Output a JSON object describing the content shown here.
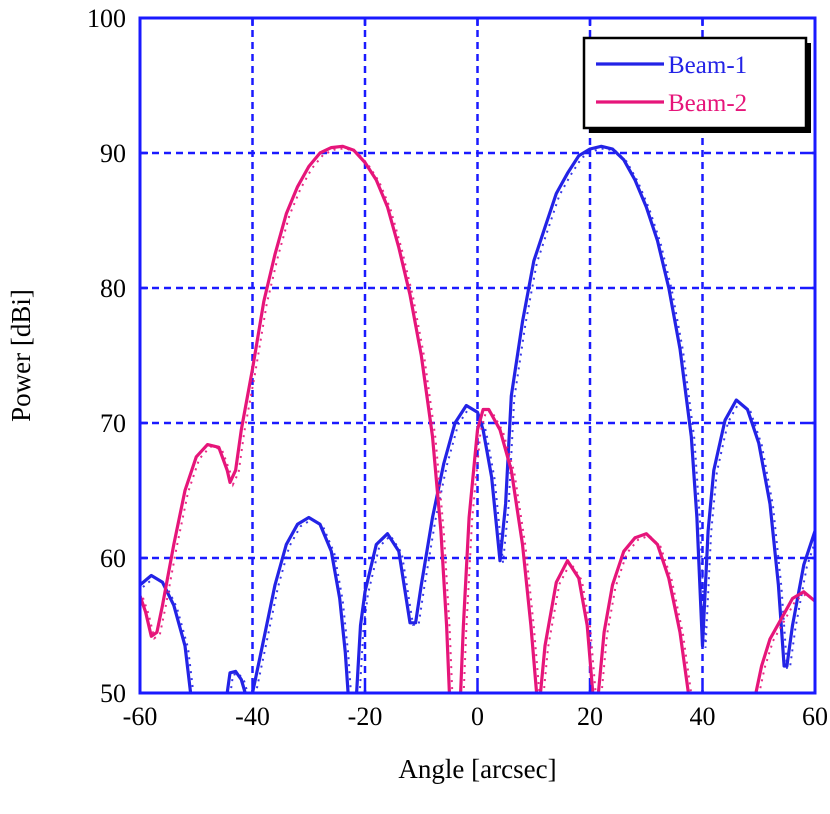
{
  "chart_data": {
    "type": "line",
    "title": "",
    "xlabel": "Angle [arcsec]",
    "ylabel": "Power [dBi]",
    "xlim": [
      -60,
      60
    ],
    "ylim": [
      50,
      100
    ],
    "x_ticks": [
      -60,
      -40,
      -20,
      0,
      20,
      40,
      60
    ],
    "y_ticks": [
      50,
      60,
      70,
      80,
      90,
      100
    ],
    "grid": true,
    "grid_style": "dashed",
    "legend_position": "top-right",
    "colors": {
      "axis": "#1a1aff",
      "grid": "#1a1aff",
      "Beam-1": "#2323e6",
      "Beam-2": "#e6157a"
    },
    "series": [
      {
        "name": "Beam-1",
        "points": [
          [
            -60,
            58
          ],
          [
            -58,
            58.7
          ],
          [
            -56,
            58.2
          ],
          [
            -54,
            56.5
          ],
          [
            -52,
            53.5
          ],
          [
            -51,
            50
          ],
          null,
          [
            -44.5,
            50
          ],
          [
            -44,
            51.5
          ],
          [
            -43,
            51.6
          ],
          [
            -42,
            51
          ],
          [
            -41.3,
            50
          ],
          null,
          [
            -40,
            50
          ],
          [
            -38,
            54
          ],
          [
            -36,
            58
          ],
          [
            -34,
            61
          ],
          [
            -32,
            62.5
          ],
          [
            -30,
            63
          ],
          [
            -28,
            62.5
          ],
          [
            -26,
            60.5
          ],
          [
            -24.5,
            57
          ],
          [
            -23.5,
            53
          ],
          [
            -23,
            50
          ],
          null,
          [
            -21.5,
            50
          ],
          [
            -20.8,
            55
          ],
          [
            -20,
            57.5
          ],
          [
            -18,
            61
          ],
          [
            -16,
            61.8
          ],
          [
            -14,
            60.5
          ],
          [
            -12,
            55.2
          ],
          [
            -11,
            55.2
          ],
          [
            -10,
            58
          ],
          [
            -8,
            63
          ],
          [
            -6,
            67
          ],
          [
            -4,
            70
          ],
          [
            -2,
            71.3
          ],
          [
            0,
            70.8
          ],
          [
            1,
            69.5
          ],
          [
            2.5,
            66
          ],
          [
            4,
            59.8
          ],
          [
            5,
            64
          ],
          [
            6,
            72
          ],
          [
            8,
            77.5
          ],
          [
            10,
            82
          ],
          [
            12,
            84.5
          ],
          [
            14,
            87
          ],
          [
            16,
            88.5
          ],
          [
            18,
            89.8
          ],
          [
            20,
            90.3
          ],
          [
            22,
            90.5
          ],
          [
            24,
            90.3
          ],
          [
            26,
            89.5
          ],
          [
            28,
            88
          ],
          [
            30,
            86
          ],
          [
            32,
            83.5
          ],
          [
            34,
            80
          ],
          [
            36,
            75.5
          ],
          [
            38,
            69
          ],
          [
            39,
            63
          ],
          [
            40,
            53.5
          ],
          [
            41,
            62
          ],
          [
            42,
            66.5
          ],
          [
            44,
            70.2
          ],
          [
            46,
            71.7
          ],
          [
            48,
            71
          ],
          [
            50,
            68.5
          ],
          [
            52,
            64
          ],
          [
            53.5,
            58
          ],
          [
            54.5,
            52
          ],
          [
            55,
            52
          ],
          [
            56,
            55
          ],
          [
            58,
            59.5
          ],
          [
            60,
            62
          ]
        ]
      },
      {
        "name": "Beam-2",
        "points": [
          [
            -60,
            57.2
          ],
          [
            -59,
            56
          ],
          [
            -58,
            54.2
          ],
          [
            -57,
            54.5
          ],
          [
            -56,
            56.5
          ],
          [
            -54,
            61
          ],
          [
            -52,
            65
          ],
          [
            -50,
            67.5
          ],
          [
            -48,
            68.4
          ],
          [
            -46,
            68.2
          ],
          [
            -44.5,
            66.5
          ],
          [
            -44,
            65.6
          ],
          [
            -43,
            66.5
          ],
          [
            -42,
            69.5
          ],
          [
            -40,
            74
          ],
          [
            -38,
            79
          ],
          [
            -36,
            82.5
          ],
          [
            -34,
            85.5
          ],
          [
            -32,
            87.5
          ],
          [
            -30,
            89
          ],
          [
            -28,
            90
          ],
          [
            -26,
            90.4
          ],
          [
            -24,
            90.5
          ],
          [
            -22,
            90.2
          ],
          [
            -20,
            89.3
          ],
          [
            -18,
            88
          ],
          [
            -16,
            86
          ],
          [
            -14,
            83
          ],
          [
            -12,
            79.5
          ],
          [
            -10,
            75
          ],
          [
            -8,
            69
          ],
          [
            -6.5,
            62
          ],
          [
            -5.5,
            55
          ],
          [
            -5,
            50
          ],
          null,
          [
            -3,
            50
          ],
          [
            -2.5,
            55
          ],
          [
            -1.5,
            63
          ],
          [
            0,
            69.5
          ],
          [
            1,
            71
          ],
          [
            2,
            71
          ],
          [
            4,
            69.5
          ],
          [
            6,
            66.5
          ],
          [
            8,
            61
          ],
          [
            9.5,
            55
          ],
          [
            10.5,
            50
          ],
          null,
          [
            11.2,
            50
          ],
          [
            12,
            53.5
          ],
          [
            14,
            58.2
          ],
          [
            16,
            59.8
          ],
          [
            18,
            58.5
          ],
          [
            19.5,
            55
          ],
          [
            20.5,
            50
          ],
          null,
          [
            21.5,
            50
          ],
          [
            22.5,
            54.5
          ],
          [
            24,
            58
          ],
          [
            26,
            60.5
          ],
          [
            28,
            61.5
          ],
          [
            30,
            61.8
          ],
          [
            32,
            61
          ],
          [
            34,
            58.5
          ],
          [
            36,
            54.5
          ],
          [
            37.5,
            50
          ],
          null,
          [
            49.5,
            50
          ],
          [
            50.5,
            52
          ],
          [
            52,
            54
          ],
          [
            54,
            55.5
          ],
          [
            56,
            57
          ],
          [
            58,
            57.5
          ],
          [
            60,
            56.8
          ]
        ]
      }
    ]
  }
}
